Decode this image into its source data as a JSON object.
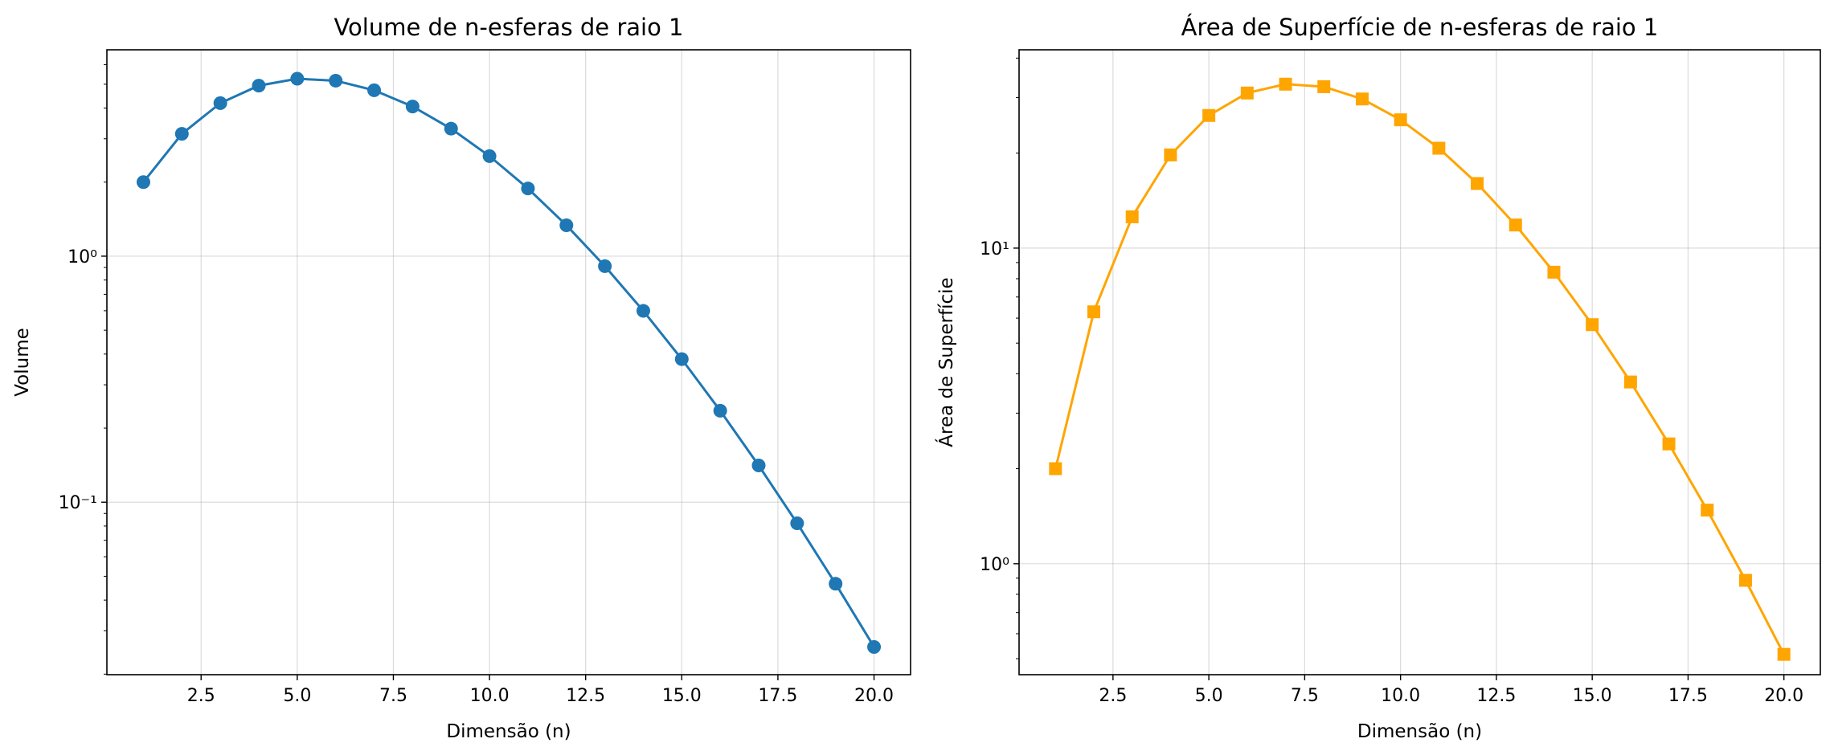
{
  "chart_data": [
    {
      "type": "line",
      "title": "Volume de n-esferas de raio 1",
      "xlabel": "Dimensão (n)",
      "ylabel": "Volume",
      "yscale": "log",
      "xlim": [
        0.05,
        20.95
      ],
      "ylim": [
        0.0199,
        6.9
      ],
      "grid": true,
      "marker": "circle",
      "color": "#1f77b4",
      "x": [
        1,
        2,
        3,
        4,
        5,
        6,
        7,
        8,
        9,
        10,
        11,
        12,
        13,
        14,
        15,
        16,
        17,
        18,
        19,
        20
      ],
      "y": [
        2.0,
        3.1416,
        4.1888,
        4.9348,
        5.2638,
        5.1677,
        4.7248,
        4.0587,
        3.2985,
        2.5502,
        1.8841,
        1.3353,
        0.9106,
        0.5993,
        0.3814,
        0.2353,
        0.141,
        0.0821,
        0.0466,
        0.0258
      ],
      "xticks": [
        "2.5",
        "5.0",
        "7.5",
        "10.0",
        "12.5",
        "15.0",
        "17.5",
        "20.0"
      ],
      "yticks": [
        "10⁰",
        "10⁻¹"
      ]
    },
    {
      "type": "line",
      "title": "Área de Superfície de n-esferas de raio 1",
      "xlabel": "Dimensão (n)",
      "ylabel": "Área de Superfície",
      "yscale": "log",
      "xlim": [
        0.05,
        20.95
      ],
      "ylim": [
        0.445,
        42.5
      ],
      "grid": true,
      "marker": "square",
      "color": "#ffa500",
      "x": [
        1,
        2,
        3,
        4,
        5,
        6,
        7,
        8,
        9,
        10,
        11,
        12,
        13,
        14,
        15,
        16,
        17,
        18,
        19,
        20
      ],
      "y": [
        2.0,
        6.2832,
        12.566,
        19.739,
        26.319,
        31.006,
        33.073,
        32.47,
        29.687,
        25.502,
        20.725,
        16.023,
        11.838,
        8.3897,
        5.7216,
        3.7653,
        2.3967,
        1.4786,
        0.8858,
        0.5161
      ],
      "xticks": [
        "2.5",
        "5.0",
        "7.5",
        "10.0",
        "12.5",
        "15.0",
        "17.5",
        "20.0"
      ],
      "yticks": [
        "10¹",
        "10⁰"
      ]
    }
  ]
}
